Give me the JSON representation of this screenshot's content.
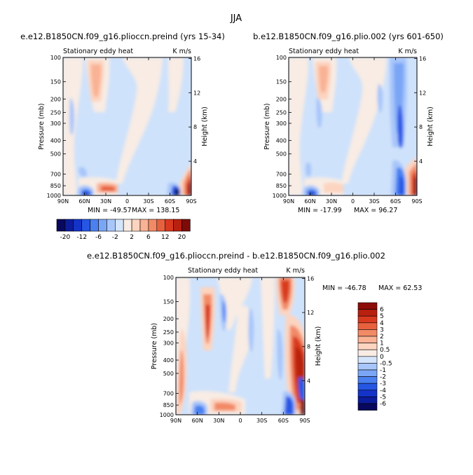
{
  "figure_title": "JJA",
  "chart_data": [
    {
      "type": "heatmap",
      "title": "e.e12.B1850CN.f09_g16.plioccn.preind (yrs 15-34)",
      "left_label": "Stationary eddy heat",
      "right_label": "K m/s",
      "ylabel": "Pressure (mb)",
      "y2label": "Height (km)",
      "x_ticks": [
        "90N",
        "60N",
        "30N",
        "0",
        "30S",
        "60S",
        "90S"
      ],
      "y_ticks": [
        "100",
        "150",
        "200",
        "250",
        "300",
        "400",
        "500",
        "700",
        "850",
        "1000"
      ],
      "y2_ticks": [
        "4",
        "8",
        "12",
        "16"
      ],
      "min_text": "MIN = -49.57",
      "max_text": "MAX = 138.15",
      "min": -49.57,
      "max": 138.15,
      "xlim": [
        "90N",
        "90S"
      ],
      "ylim": [
        1000,
        100
      ]
    },
    {
      "type": "heatmap",
      "title": "b.e12.B1850CN.f09_g16.plio.002 (yrs 601-650)",
      "left_label": "Stationary eddy heat",
      "right_label": "K m/s",
      "ylabel": "Pressure (mb)",
      "y2label": "Height (km)",
      "x_ticks": [
        "90N",
        "60N",
        "30N",
        "0",
        "30S",
        "60S",
        "90S"
      ],
      "y_ticks": [
        "100",
        "150",
        "200",
        "250",
        "300",
        "400",
        "500",
        "700",
        "850",
        "1000"
      ],
      "y2_ticks": [
        "4",
        "8",
        "12",
        "16"
      ],
      "min_text": "MIN = -17.99",
      "max_text": "MAX = 96.27",
      "min": -17.99,
      "max": 96.27,
      "xlim": [
        "90N",
        "90S"
      ],
      "ylim": [
        1000,
        100
      ]
    },
    {
      "type": "heatmap",
      "title": "e.e12.B1850CN.f09_g16.plioccn.preind - b.e12.B1850CN.f09_g16.plio.002",
      "left_label": "Stationary eddy heat",
      "right_label": "K m/s",
      "ylabel": "Pressure (mb)",
      "y2label": "Height (km)",
      "x_ticks": [
        "90N",
        "60N",
        "30N",
        "0",
        "30S",
        "60S",
        "90S"
      ],
      "y_ticks": [
        "100",
        "150",
        "200",
        "250",
        "300",
        "400",
        "500",
        "700",
        "850",
        "1000"
      ],
      "y2_ticks": [
        "4",
        "8",
        "12",
        "16"
      ],
      "min_text": "MIN = -46.78",
      "max_text": "MAX =   62.53",
      "min": -46.78,
      "max": 62.53,
      "xlim": [
        "90N",
        "90S"
      ],
      "ylim": [
        1000,
        100
      ]
    }
  ],
  "colorbar_top": {
    "labels": [
      "-20",
      "-12",
      "-6",
      "-2",
      "2",
      "6",
      "12",
      "20"
    ],
    "colors": [
      "#08085e",
      "#0c1c9c",
      "#1433c8",
      "#2656e4",
      "#4a80f0",
      "#7aa6f6",
      "#a8c6fa",
      "#d4e4fb",
      "#f8ece4",
      "#fcd4c0",
      "#f9b294",
      "#f28a66",
      "#e8613f",
      "#d93a1f",
      "#b8200f",
      "#7e0b08"
    ]
  },
  "colorbar_diff": {
    "labels": [
      "6",
      "5",
      "4",
      "3",
      "2",
      "1",
      "0.5",
      "0",
      "-0.5",
      "-1",
      "-2",
      "-3",
      "-4",
      "-5",
      "-6"
    ],
    "colors": [
      "#8e0c08",
      "#b8200f",
      "#d93a1f",
      "#e8613f",
      "#f28a66",
      "#f9b294",
      "#fcd4c0",
      "#f8ece4",
      "#d4e4fb",
      "#a8c6fa",
      "#7aa6f6",
      "#4a80f0",
      "#2656e4",
      "#1433c8",
      "#0c1c9c",
      "#08085e"
    ]
  },
  "colors": {
    "background": "#cfe2fb",
    "pos1": "#f8ece4",
    "pos2": "#fcd4c0",
    "pos3": "#f9b294",
    "pos4": "#f28a66",
    "pos5": "#e8613f",
    "pos6": "#d93a1f",
    "pos7": "#b8200f",
    "pos8": "#7e0b08",
    "neg1": "#cfe2fb",
    "neg2": "#a8c6fa",
    "neg3": "#7aa6f6",
    "neg4": "#4a80f0",
    "neg5": "#2656e4",
    "neg6": "#1433c8",
    "neg7": "#08085e"
  }
}
